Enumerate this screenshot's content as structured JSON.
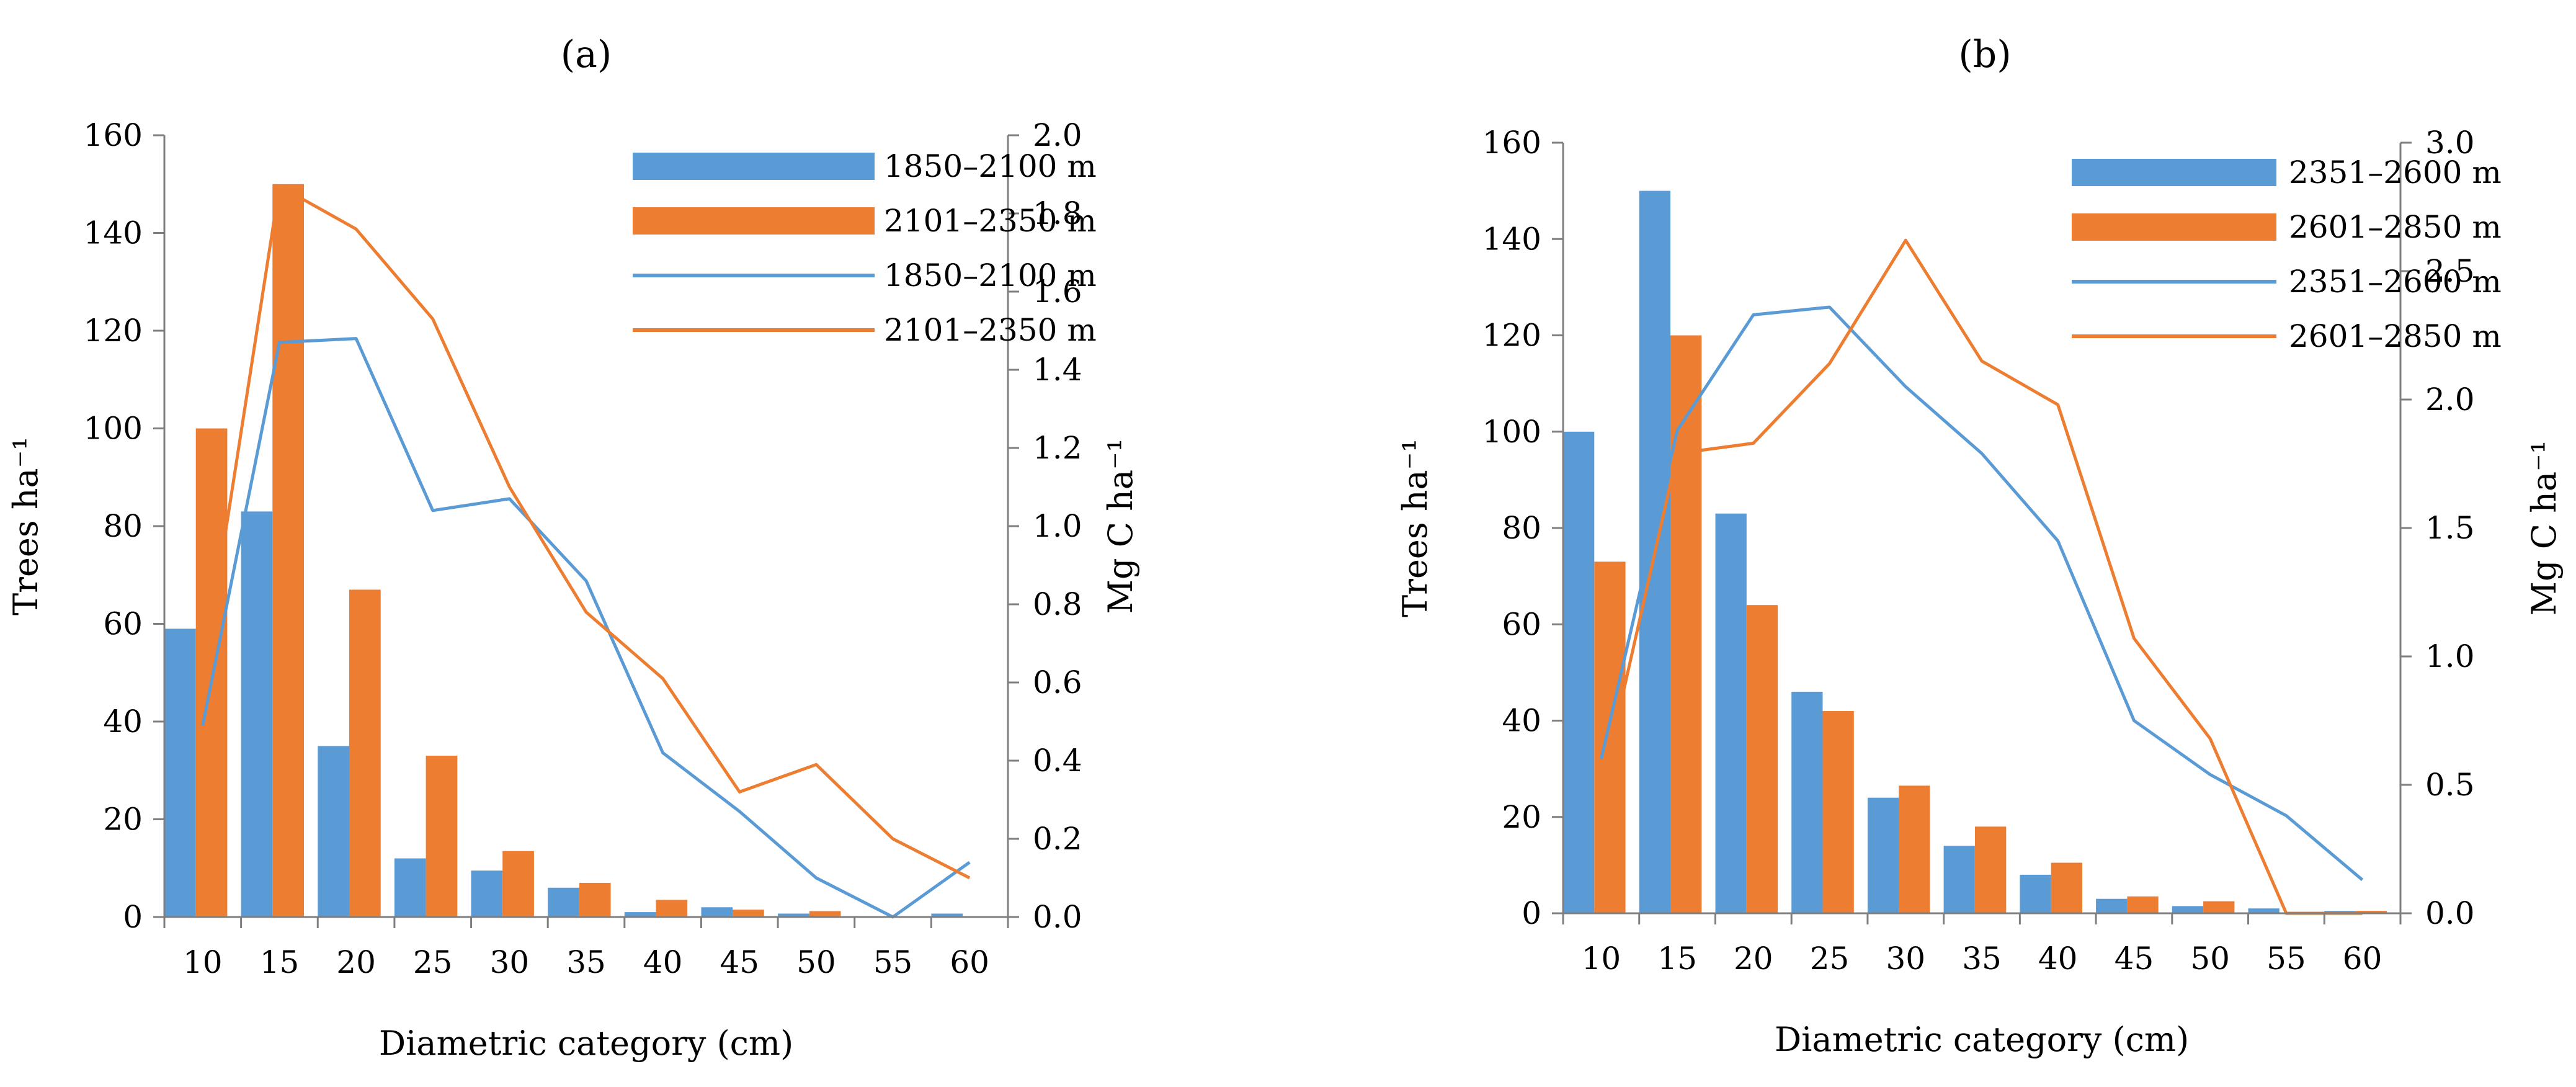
{
  "colors": {
    "blue": "#5B9BD5",
    "orange": "#ED7D31",
    "axis": "#7f7f7f"
  },
  "chart_data": [
    {
      "type": "bar+line",
      "panel_label": "(a)",
      "title": "",
      "xlabel": "Diametric category (cm)",
      "ylabel_left": "Trees ha⁻¹",
      "ylabel_right": "Mg C ha⁻¹",
      "categories": [
        "10",
        "15",
        "20",
        "25",
        "30",
        "35",
        "40",
        "45",
        "50",
        "55",
        "60"
      ],
      "ylim_left": [
        0,
        160
      ],
      "yticks_left": [
        "0",
        "20",
        "40",
        "60",
        "80",
        "100",
        "120",
        "140",
        "160"
      ],
      "ylim_right": [
        0,
        2.0
      ],
      "yticks_right": [
        "0.0",
        "0.2",
        "0.4",
        "0.6",
        "0.8",
        "1.0",
        "1.2",
        "1.4",
        "1.6",
        "1.8",
        "2.0"
      ],
      "bar_series": [
        {
          "name": "1850–2100 m",
          "color": "#5B9BD5",
          "values": [
            59,
            83,
            35,
            12,
            9.5,
            6,
            1,
            2,
            0.7,
            0,
            0.7
          ]
        },
        {
          "name": "2101–2350 m",
          "color": "#ED7D31",
          "values": [
            100,
            150,
            67,
            33,
            13.5,
            7,
            3.5,
            1.5,
            1.2,
            0,
            0
          ]
        }
      ],
      "line_series": [
        {
          "name": "1850–2100 m",
          "color": "#5B9BD5",
          "values": [
            0.49,
            1.47,
            1.48,
            1.04,
            1.07,
            0.86,
            0.42,
            0.27,
            0.1,
            0.0,
            0.14
          ]
        },
        {
          "name": "2101–2350 m",
          "color": "#ED7D31",
          "values": [
            0.61,
            1.87,
            1.76,
            1.53,
            1.1,
            0.78,
            0.61,
            0.32,
            0.39,
            0.2,
            0.1
          ]
        }
      ],
      "legend": [
        "1850–2100 m",
        "2101–2350 m",
        "1850–2100 m",
        "2101–2350 m"
      ]
    },
    {
      "type": "bar+line",
      "panel_label": "(b)",
      "title": "",
      "xlabel": "Diametric category (cm)",
      "ylabel_left": "Trees ha⁻¹",
      "ylabel_right": "Mg C ha⁻¹",
      "categories": [
        "10",
        "15",
        "20",
        "25",
        "30",
        "35",
        "40",
        "45",
        "50",
        "55",
        "60"
      ],
      "ylim_left": [
        0,
        160
      ],
      "yticks_left": [
        "0",
        "20",
        "40",
        "60",
        "80",
        "100",
        "120",
        "140",
        "160"
      ],
      "ylim_right": [
        0,
        3.0
      ],
      "yticks_right": [
        "0.0",
        "0.5",
        "1.0",
        "1.5",
        "2.0",
        "2.5",
        "3.0"
      ],
      "bar_series": [
        {
          "name": "2351–2600 m",
          "color": "#5B9BD5",
          "values": [
            100,
            150,
            83,
            46,
            24,
            14,
            8,
            3,
            1.5,
            1,
            0.5
          ]
        },
        {
          "name": "2601–2850 m",
          "color": "#ED7D31",
          "values": [
            73,
            120,
            64,
            42,
            26.5,
            18,
            10.5,
            3.5,
            2.5,
            0,
            0.5
          ]
        }
      ],
      "line_series": [
        {
          "name": "2351–2600 m",
          "color": "#5B9BD5",
          "values": [
            0.6,
            1.88,
            2.33,
            2.36,
            2.05,
            1.79,
            1.45,
            0.75,
            0.54,
            0.38,
            0.13
          ]
        },
        {
          "name": "2601–2850 m",
          "color": "#ED7D31",
          "values": [
            0.48,
            1.79,
            1.83,
            2.14,
            2.62,
            2.15,
            1.98,
            1.07,
            0.68,
            0.0,
            0.0
          ]
        }
      ],
      "legend": [
        "2351–2600 m",
        "2601–2850 m",
        "2351–2600 m",
        "2601–2850 m"
      ]
    }
  ]
}
